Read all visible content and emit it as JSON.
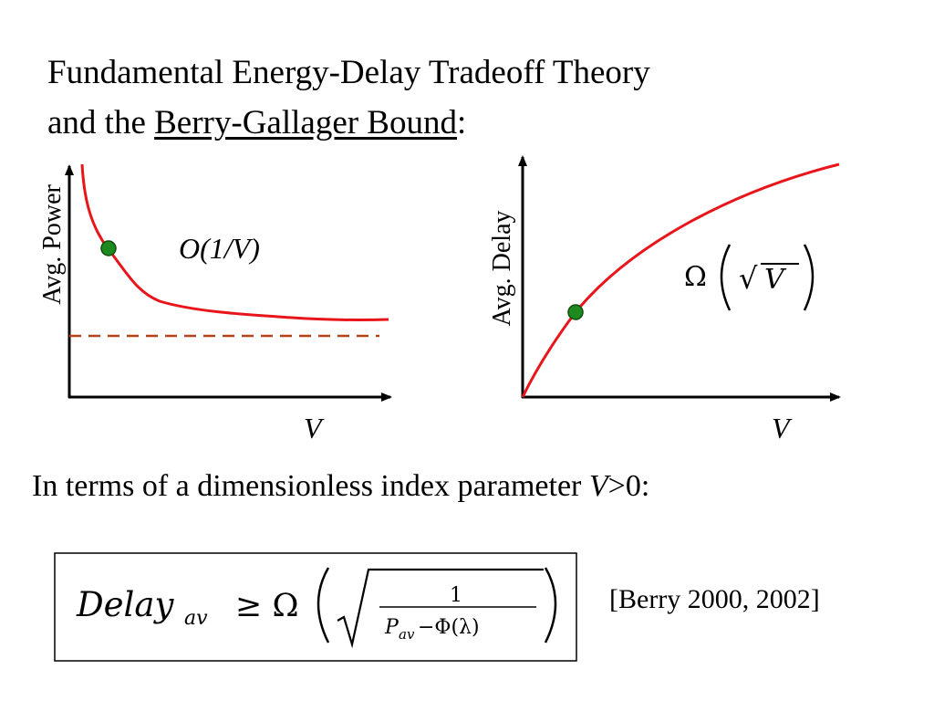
{
  "title": {
    "line1": "Fundamental Energy-Delay Tradeoff Theory",
    "line2_prefix": "and the ",
    "line2_link": "Berry-Gallager Bound",
    "line2_suffix": ":"
  },
  "left_plot": {
    "ylabel": "Avg. Power",
    "xlabel": "V",
    "annotation": "O(1/V)"
  },
  "right_plot": {
    "ylabel": "Avg. Delay",
    "xlabel": "V",
    "annotation_prefix": "Ω",
    "annotation_sqrt": "√",
    "annotation_var": "V"
  },
  "intro": {
    "prefix": "In terms of a dimensionless index parameter ",
    "var": "V",
    "suffix": ">0:"
  },
  "formula": {
    "lhs": "Delay",
    "lhs_sub": "av",
    "op": "≥ Ω",
    "numerator": "1",
    "den_p": "P",
    "den_sub": "av",
    "den_rest": "−Φ(λ)"
  },
  "citation": "[Berry 2000, 2002]",
  "colors": {
    "curve": "#e8161b",
    "dashed": "#b5431a",
    "marker": "#1e8a1e"
  }
}
